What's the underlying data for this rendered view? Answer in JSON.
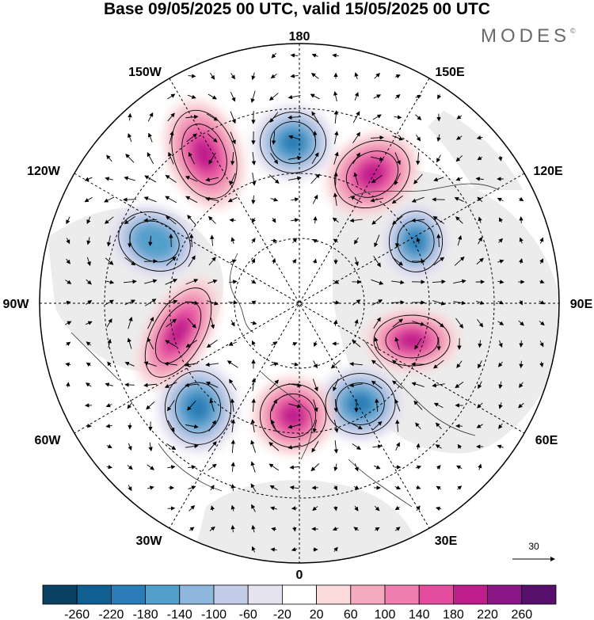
{
  "title": "Base 09/05/2025 00 UTC, valid 15/05/2025 00 UTC",
  "logo": "MODES",
  "logo_mark": "©",
  "longitude_labels": {
    "top": "180",
    "bottom": "0",
    "left": "90W",
    "right": "90E",
    "upper_left_1": "150W",
    "upper_left_2": "120W",
    "upper_right_1": "150E",
    "upper_right_2": "120E",
    "lower_left_1": "60W",
    "lower_left_2": "30W",
    "lower_right_1": "60E",
    "lower_right_2": "30E"
  },
  "reference_vector_label": "30",
  "colorbar": {
    "ticks": [
      "-260",
      "-220",
      "-180",
      "-140",
      "-100",
      "-60",
      "-20",
      "20",
      "60",
      "100",
      "140",
      "180",
      "220",
      "260"
    ],
    "colors": [
      "#0b3f63",
      "#115e91",
      "#2a7db6",
      "#539fcb",
      "#8fb6dc",
      "#c4cde7",
      "#e6e3f1",
      "#ffffff",
      "#fadada",
      "#f4abc0",
      "#ef7fae",
      "#e44c9e",
      "#c01d8c",
      "#8a1584",
      "#57116d"
    ]
  },
  "anomaly_centers": [
    {
      "id": "pos-150w",
      "sign": "positive",
      "strength": 140
    },
    {
      "id": "neg-180",
      "sign": "negative",
      "strength": 140
    },
    {
      "id": "pos-150e",
      "sign": "positive",
      "strength": 180
    },
    {
      "id": "neg-110e",
      "sign": "negative",
      "strength": 180
    },
    {
      "id": "pos-80e",
      "sign": "positive",
      "strength": 140
    },
    {
      "id": "neg-45e",
      "sign": "negative",
      "strength": 140
    },
    {
      "id": "pos-0",
      "sign": "positive",
      "strength": 180
    },
    {
      "id": "neg-50w",
      "sign": "negative",
      "strength": 180
    },
    {
      "id": "pos-80w",
      "sign": "positive",
      "strength": 140
    },
    {
      "id": "neg-120w",
      "sign": "negative",
      "strength": 100
    }
  ]
}
